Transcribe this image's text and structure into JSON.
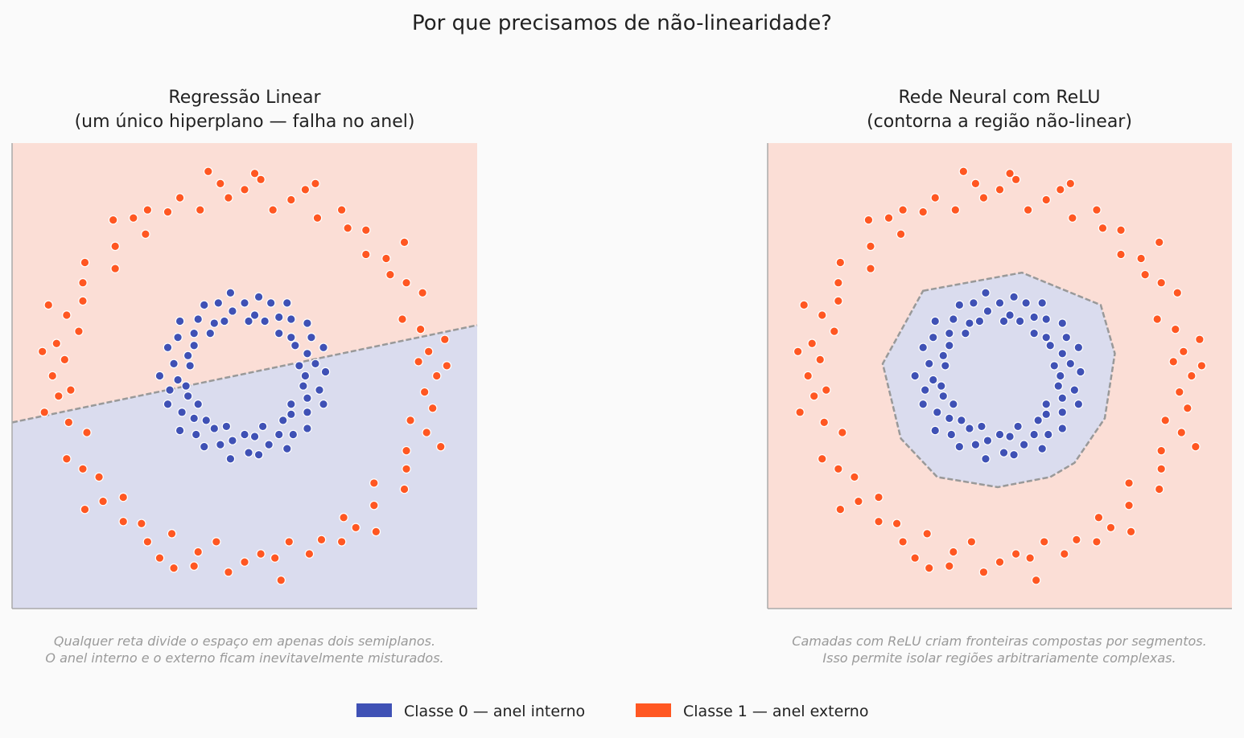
{
  "suptitle": "Por que precisamos de não-linearidade?",
  "colors": {
    "class0": "#3f51b5",
    "class1": "#ff5722",
    "region0": "#dadcee",
    "region1": "#fbded6",
    "boundary": "#999999",
    "background": "#fafafa"
  },
  "legend": {
    "class0": "Classe 0 — anel interno",
    "class1": "Classe 1 — anel externo"
  },
  "chart_data": [
    {
      "type": "scatter",
      "title_line1": "Regressão Linear",
      "title_line2": "(um único hiperplano — falha no anel)",
      "note_line1": "Qualquer reta divide o espaço em apenas dois semiplanos.",
      "note_line2": "O anel interno e o externo ficam inevitavelmente misturados.",
      "xlim": [
        -1.15,
        1.15
      ],
      "ylim": [
        -1.15,
        1.15
      ],
      "axis_ticks": false,
      "grid": false,
      "decision_boundary": {
        "kind": "line",
        "intercept": 0.01,
        "slope": 0.209,
        "above": "class1",
        "below": "class0"
      }
    },
    {
      "type": "scatter",
      "title_line1": "Rede Neural com ReLU",
      "title_line2": "(contorna a região não-linear)",
      "note_line1": "Camadas com ReLU criam fronteiras compostas por segmentos.",
      "note_line2": "Isso permite isolar regiões arbitrariamente complexas.",
      "xlim": [
        -1.15,
        1.15
      ],
      "ylim": [
        -1.15,
        1.15
      ],
      "axis_ticks": false,
      "grid": false,
      "decision_boundary": {
        "kind": "polygon",
        "inside": "class0",
        "outside": "class1",
        "vertices": [
          [
            -0.38,
            0.42
          ],
          [
            0.11,
            0.51
          ],
          [
            0.5,
            0.35
          ],
          [
            0.57,
            0.11
          ],
          [
            0.52,
            -0.21
          ],
          [
            0.37,
            -0.43
          ],
          [
            0.25,
            -0.5
          ],
          [
            -0.01,
            -0.55
          ],
          [
            -0.31,
            -0.5
          ],
          [
            -0.49,
            -0.31
          ],
          [
            -0.58,
            0.06
          ]
        ]
      }
    }
  ],
  "points": {
    "class1": [
      [
        0.95,
        0
      ],
      [
        0.86,
        0.07
      ],
      [
        0.99,
        0.18
      ],
      [
        0.87,
        0.23
      ],
      [
        0.78,
        0.28
      ],
      [
        0.88,
        0.41
      ],
      [
        0.8,
        0.46
      ],
      [
        0.72,
        0.5
      ],
      [
        0.79,
        0.66
      ],
      [
        0.6,
        0.6
      ],
      [
        0.6,
        0.72
      ],
      [
        0.51,
        0.73
      ],
      [
        0.48,
        0.82
      ],
      [
        0.36,
        0.78
      ],
      [
        0.35,
        0.95
      ],
      [
        0.23,
        0.87
      ],
      [
        0.14,
        0.82
      ],
      [
        0.08,
        0.97
      ],
      [
        0,
        0.92
      ],
      [
        -0.08,
        0.88
      ],
      [
        -0.18,
        1.01
      ],
      [
        -0.22,
        0.82
      ],
      [
        -0.32,
        0.88
      ],
      [
        -0.38,
        0.81
      ],
      [
        -0.48,
        0.82
      ],
      [
        -0.49,
        0.7
      ],
      [
        -0.65,
        0.77
      ],
      [
        -0.64,
        0.64
      ],
      [
        -0.64,
        0.53
      ],
      [
        -0.79,
        0.56
      ],
      [
        -0.8,
        0.46
      ],
      [
        -0.8,
        0.37
      ],
      [
        -0.97,
        0.35
      ],
      [
        -0.82,
        0.22
      ],
      [
        -0.93,
        0.16
      ],
      [
        -0.89,
        0.08
      ],
      [
        -0.95,
        0
      ],
      [
        -0.86,
        -0.07
      ],
      [
        -0.99,
        -0.18
      ],
      [
        -0.87,
        -0.23
      ],
      [
        -0.78,
        -0.28
      ],
      [
        -0.88,
        -0.41
      ],
      [
        -0.8,
        -0.46
      ],
      [
        -0.72,
        -0.5
      ],
      [
        -0.79,
        -0.66
      ],
      [
        -0.6,
        -0.6
      ],
      [
        -0.6,
        -0.72
      ],
      [
        -0.51,
        -0.73
      ],
      [
        -0.48,
        -0.82
      ],
      [
        -0.36,
        -0.78
      ],
      [
        -0.35,
        -0.95
      ],
      [
        -0.23,
        -0.87
      ],
      [
        -0.14,
        -0.82
      ],
      [
        -0.08,
        -0.97
      ],
      [
        0,
        -0.92
      ],
      [
        0.08,
        -0.88
      ],
      [
        0.18,
        -1.01
      ],
      [
        0.22,
        -0.82
      ],
      [
        0.32,
        -0.88
      ],
      [
        0.38,
        -0.81
      ],
      [
        0.48,
        -0.82
      ],
      [
        0.49,
        -0.7
      ],
      [
        0.65,
        -0.77
      ],
      [
        0.64,
        -0.64
      ],
      [
        0.64,
        -0.53
      ],
      [
        0.79,
        -0.56
      ],
      [
        0.8,
        -0.46
      ],
      [
        0.8,
        -0.37
      ],
      [
        0.97,
        -0.35
      ],
      [
        0.82,
        -0.22
      ],
      [
        0.93,
        -0.16
      ],
      [
        0.89,
        -0.08
      ],
      [
        0.91,
        0.12
      ],
      [
        0.7,
        0.58
      ],
      [
        0.3,
        0.92
      ],
      [
        -0.12,
        0.95
      ],
      [
        -0.55,
        0.78
      ],
      [
        -0.88,
        0.3
      ],
      [
        -0.92,
        -0.1
      ],
      [
        -0.7,
        -0.62
      ],
      [
        -0.25,
        -0.94
      ],
      [
        0.15,
        -0.9
      ],
      [
        0.55,
        -0.75
      ],
      [
        0.9,
        -0.28
      ],
      [
        1.0,
        0.05
      ],
      [
        -1.0,
        0.12
      ],
      [
        0.05,
        1.0
      ],
      [
        -0.42,
        -0.9
      ]
    ],
    "class0": [
      [
        0.3,
        0
      ],
      [
        0.4,
        0.02
      ],
      [
        0.35,
        0.06
      ],
      [
        0.27,
        0.05
      ],
      [
        0.39,
        0.14
      ],
      [
        0.31,
        0.11
      ],
      [
        0.25,
        0.15
      ],
      [
        0.33,
        0.19
      ],
      [
        0.23,
        0.19
      ],
      [
        0.31,
        0.26
      ],
      [
        0.23,
        0.28
      ],
      [
        0.17,
        0.21
      ],
      [
        0.21,
        0.36
      ],
      [
        0.17,
        0.29
      ],
      [
        0.1,
        0.27
      ],
      [
        0.13,
        0.36
      ],
      [
        0.05,
        0.3
      ],
      [
        0.07,
        0.39
      ],
      [
        0,
        0.36
      ],
      [
        0.02,
        0.27
      ],
      [
        -0.07,
        0.41
      ],
      [
        -0.06,
        0.32
      ],
      [
        -0.1,
        0.27
      ],
      [
        -0.13,
        0.36
      ],
      [
        -0.15,
        0.26
      ],
      [
        -0.2,
        0.35
      ],
      [
        -0.23,
        0.28
      ],
      [
        -0.17,
        0.21
      ],
      [
        -0.32,
        0.27
      ],
      [
        -0.25,
        0.21
      ],
      [
        -0.25,
        0.15
      ],
      [
        -0.33,
        0.19
      ],
      [
        -0.28,
        0.1
      ],
      [
        -0.38,
        0.14
      ],
      [
        -0.35,
        0.06
      ],
      [
        -0.27,
        0.05
      ],
      [
        -0.42,
        0
      ],
      [
        -0.33,
        -0.02
      ],
      [
        -0.29,
        -0.05
      ],
      [
        -0.37,
        -0.07
      ],
      [
        -0.28,
        -0.1
      ],
      [
        -0.38,
        -0.14
      ],
      [
        -0.31,
        -0.18
      ],
      [
        -0.23,
        -0.14
      ],
      [
        -0.32,
        -0.27
      ],
      [
        -0.25,
        -0.21
      ],
      [
        -0.19,
        -0.22
      ],
      [
        -0.24,
        -0.29
      ],
      [
        -0.15,
        -0.26
      ],
      [
        -0.2,
        -0.35
      ],
      [
        -0.12,
        -0.34
      ],
      [
        -0.09,
        -0.25
      ],
      [
        -0.07,
        -0.41
      ],
      [
        -0.06,
        -0.32
      ],
      [
        0,
        -0.29
      ],
      [
        0.02,
        -0.38
      ],
      [
        0.05,
        -0.3
      ],
      [
        0.07,
        -0.39
      ],
      [
        0.12,
        -0.34
      ],
      [
        0.09,
        -0.25
      ],
      [
        0.21,
        -0.36
      ],
      [
        0.17,
        -0.29
      ],
      [
        0.19,
        -0.22
      ],
      [
        0.24,
        -0.29
      ],
      [
        0.23,
        -0.19
      ],
      [
        0.31,
        -0.26
      ],
      [
        0.31,
        -0.18
      ],
      [
        0.23,
        -0.14
      ],
      [
        0.39,
        -0.14
      ],
      [
        0.31,
        -0.11
      ],
      [
        0.29,
        -0.05
      ],
      [
        0.37,
        -0.07
      ]
    ]
  }
}
